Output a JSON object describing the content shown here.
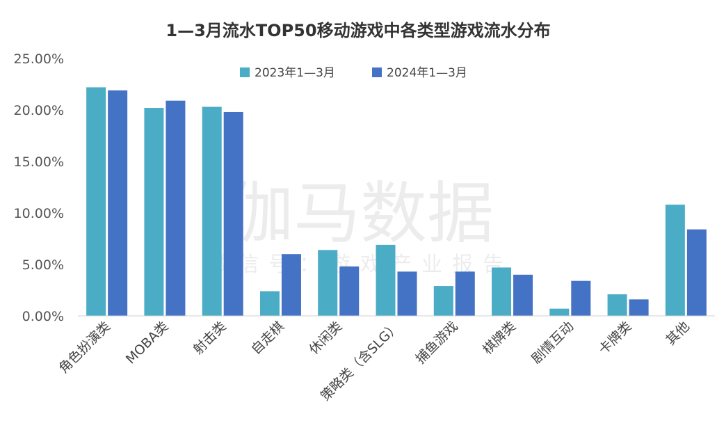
{
  "colors": {
    "series_2023": "#4bacc6",
    "series_2024": "#4472c4",
    "axis": "#d0d0d0",
    "text": "#444444"
  },
  "watermark": {
    "main": "伽马数据",
    "sub": "微信号：游戏产业报告"
  },
  "chart_data": {
    "type": "bar",
    "title": "1—3月流水TOP50移动游戏中各类型游戏流水分布",
    "xlabel": "",
    "ylabel": "",
    "ylim": [
      0,
      25
    ],
    "yticks": [
      "0.00%",
      "5.00%",
      "10.00%",
      "15.00%",
      "20.00%",
      "25.00%"
    ],
    "grid": false,
    "legend_position": "top-center",
    "categories": [
      "角色扮演类",
      "MOBA类",
      "射击类",
      "自走棋",
      "休闲类",
      "策略类（含SLG）",
      "捕鱼游戏",
      "棋牌类",
      "剧情互动",
      "卡牌类",
      "其他"
    ],
    "series": [
      {
        "name": "2023年1—3月",
        "color": "#4bacc6",
        "values": [
          22.2,
          20.2,
          20.3,
          2.4,
          6.4,
          6.9,
          2.9,
          4.7,
          0.7,
          2.1,
          10.8
        ]
      },
      {
        "name": "2024年1—3月",
        "color": "#4472c4",
        "values": [
          21.9,
          20.9,
          19.8,
          6.0,
          4.8,
          4.3,
          4.3,
          4.0,
          3.4,
          1.6,
          8.4
        ]
      }
    ]
  }
}
